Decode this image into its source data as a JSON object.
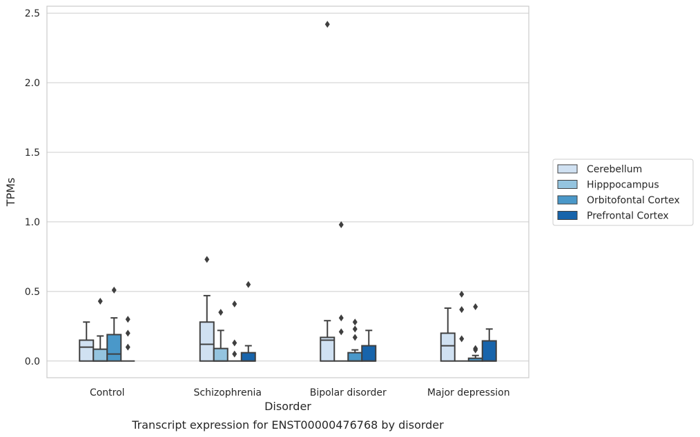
{
  "chart_data": {
    "type": "box",
    "xlabel": "Disorder",
    "ylabel": "TPMs",
    "caption": "Transcript expression for ENST00000476768 by disorder",
    "ylim": [
      -0.12,
      2.55
    ],
    "yticks": [
      0.0,
      0.5,
      1.0,
      1.5,
      2.0,
      2.5
    ],
    "ytick_labels": [
      "0.0",
      "0.5",
      "1.0",
      "1.5",
      "2.0",
      "2.5"
    ],
    "grid": "horizontal",
    "legend_position": "right",
    "categories": [
      "Control",
      "Schizophrenia",
      "Bipolar disorder",
      "Major depression"
    ],
    "series": [
      {
        "name": "Cerebellum",
        "color": "#d0e1f2",
        "boxes": [
          {
            "q1": 0.0,
            "median": 0.1,
            "q3": 0.15,
            "whisker_low": 0.0,
            "whisker_high": 0.28,
            "outliers": []
          },
          {
            "q1": 0.0,
            "median": 0.12,
            "q3": 0.28,
            "whisker_low": 0.0,
            "whisker_high": 0.47,
            "outliers": [
              0.73
            ]
          },
          {
            "q1": 0.0,
            "median": 0.15,
            "q3": 0.17,
            "whisker_low": 0.0,
            "whisker_high": 0.29,
            "outliers": [
              2.42
            ]
          },
          {
            "q1": 0.0,
            "median": 0.11,
            "q3": 0.2,
            "whisker_low": 0.0,
            "whisker_high": 0.38,
            "outliers": []
          }
        ]
      },
      {
        "name": "Hipppocampus",
        "color": "#94c4df",
        "boxes": [
          {
            "q1": 0.0,
            "median": 0.0,
            "q3": 0.085,
            "whisker_low": 0.0,
            "whisker_high": 0.18,
            "outliers": [
              0.43
            ]
          },
          {
            "q1": 0.0,
            "median": 0.0,
            "q3": 0.09,
            "whisker_low": 0.0,
            "whisker_high": 0.22,
            "outliers": [
              0.35
            ]
          },
          {
            "q1": 0.0,
            "median": 0.0,
            "q3": 0.0,
            "whisker_low": 0.0,
            "whisker_high": 0.0,
            "outliers": [
              0.98,
              0.31,
              0.21
            ]
          },
          {
            "q1": 0.0,
            "median": 0.0,
            "q3": 0.0,
            "whisker_low": 0.0,
            "whisker_high": 0.0,
            "outliers": [
              0.48,
              0.37,
              0.16
            ]
          }
        ]
      },
      {
        "name": "Orbitofontal Cortex",
        "color": "#4a98c9",
        "boxes": [
          {
            "q1": 0.0,
            "median": 0.05,
            "q3": 0.19,
            "whisker_low": 0.0,
            "whisker_high": 0.31,
            "outliers": [
              0.51
            ]
          },
          {
            "q1": 0.0,
            "median": 0.0,
            "q3": 0.0,
            "whisker_low": 0.0,
            "whisker_high": 0.0,
            "outliers": [
              0.41,
              0.13,
              0.05
            ]
          },
          {
            "q1": 0.0,
            "median": 0.0,
            "q3": 0.06,
            "whisker_low": 0.0,
            "whisker_high": 0.08,
            "outliers": [
              0.28,
              0.23,
              0.17
            ]
          },
          {
            "q1": 0.0,
            "median": 0.0,
            "q3": 0.02,
            "whisker_low": 0.0,
            "whisker_high": 0.04,
            "outliers": [
              0.39,
              0.09,
              0.08
            ]
          }
        ]
      },
      {
        "name": "Prefrontal Cortex",
        "color": "#1764ab",
        "boxes": [
          {
            "q1": 0.0,
            "median": 0.0,
            "q3": 0.0,
            "whisker_low": 0.0,
            "whisker_high": 0.0,
            "outliers": [
              0.3,
              0.2,
              0.1
            ]
          },
          {
            "q1": 0.0,
            "median": 0.0,
            "q3": 0.06,
            "whisker_low": 0.0,
            "whisker_high": 0.11,
            "outliers": [
              0.55
            ]
          },
          {
            "q1": 0.0,
            "median": 0.0,
            "q3": 0.11,
            "whisker_low": 0.0,
            "whisker_high": 0.22,
            "outliers": []
          },
          {
            "q1": 0.0,
            "median": 0.0,
            "q3": 0.145,
            "whisker_low": 0.0,
            "whisker_high": 0.23,
            "outliers": []
          }
        ]
      }
    ]
  },
  "colors": {
    "line": "#3f3f3f",
    "grid": "#cccccc",
    "frame": "#cccccc"
  }
}
